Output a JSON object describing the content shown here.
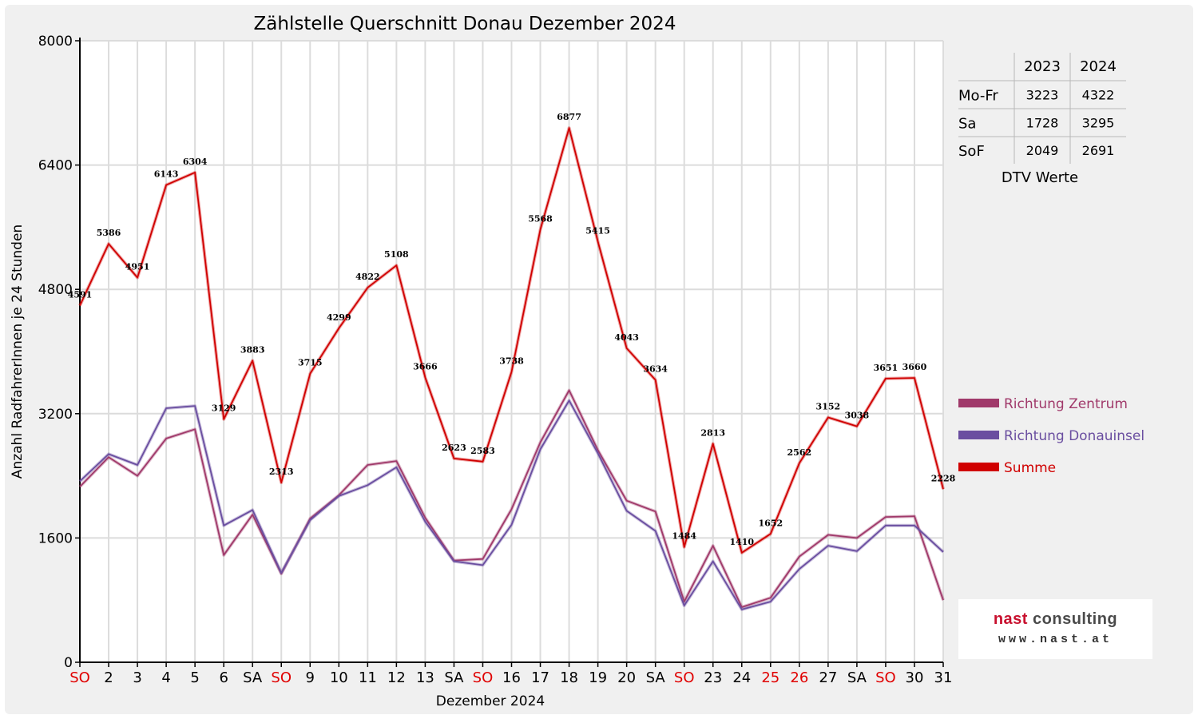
{
  "chart_data": {
    "type": "line",
    "title": "Zählstelle Querschnitt Donau Dezember 2024",
    "xlabel": "Dezember 2024",
    "ylabel": "Anzahl RadfahrerInnen je 24 Stunden",
    "ylim": [
      0,
      8000
    ],
    "yticks": [
      "0",
      "1600",
      "3200",
      "4800",
      "6400",
      "8000"
    ],
    "grid": true,
    "categories": [
      "SO",
      "2",
      "3",
      "4",
      "5",
      "6",
      "SA",
      "SO",
      "9",
      "10",
      "11",
      "12",
      "13",
      "SA",
      "SO",
      "16",
      "17",
      "18",
      "19",
      "20",
      "SA",
      "SO",
      "23",
      "24",
      "25",
      "26",
      "27",
      "SA",
      "SO",
      "30",
      "31"
    ],
    "red_categories": [
      0,
      7,
      14,
      21,
      24,
      25,
      28
    ],
    "series": [
      {
        "name": "Richtung Zentrum",
        "color": "#a0396a",
        "show_labels": false,
        "values": [
          2260,
          2640,
          2400,
          2880,
          3000,
          1380,
          1900,
          1140,
          1850,
          2150,
          2540,
          2590,
          1860,
          1310,
          1330,
          1970,
          2830,
          3500,
          2730,
          2080,
          1940,
          780,
          1500,
          710,
          830,
          1360,
          1640,
          1600,
          1870,
          1880,
          800
        ]
      },
      {
        "name": "Richtung Donauinsel",
        "color": "#6a4ea0",
        "show_labels": false,
        "values": [
          2330,
          2680,
          2540,
          3270,
          3300,
          1760,
          1960,
          1150,
          1830,
          2140,
          2280,
          2510,
          1810,
          1300,
          1250,
          1770,
          2740,
          3370,
          2690,
          1950,
          1690,
          730,
          1300,
          680,
          780,
          1200,
          1500,
          1430,
          1760,
          1760,
          1420
        ]
      },
      {
        "name": "Summe",
        "color": "#d00000",
        "show_labels": true,
        "values": [
          4591,
          5386,
          4951,
          6143,
          6304,
          3129,
          3883,
          2313,
          3715,
          4299,
          4822,
          5108,
          3666,
          2623,
          2583,
          3738,
          5568,
          6877,
          5415,
          4043,
          3634,
          1484,
          2813,
          1410,
          1652,
          2562,
          3152,
          3038,
          3651,
          3660,
          2228
        ]
      }
    ]
  },
  "dtv_table": {
    "headers": [
      "",
      "2023",
      "2024"
    ],
    "rows": [
      [
        "Mo-Fr",
        "3223",
        "4322"
      ],
      [
        "Sa",
        "1728",
        "3295"
      ],
      [
        "SoF",
        "2049",
        "2691"
      ]
    ],
    "caption": "DTV Werte"
  },
  "logo": {
    "name_part1": "nast",
    "name_part2": " consulting",
    "url": "www.nast.at"
  }
}
